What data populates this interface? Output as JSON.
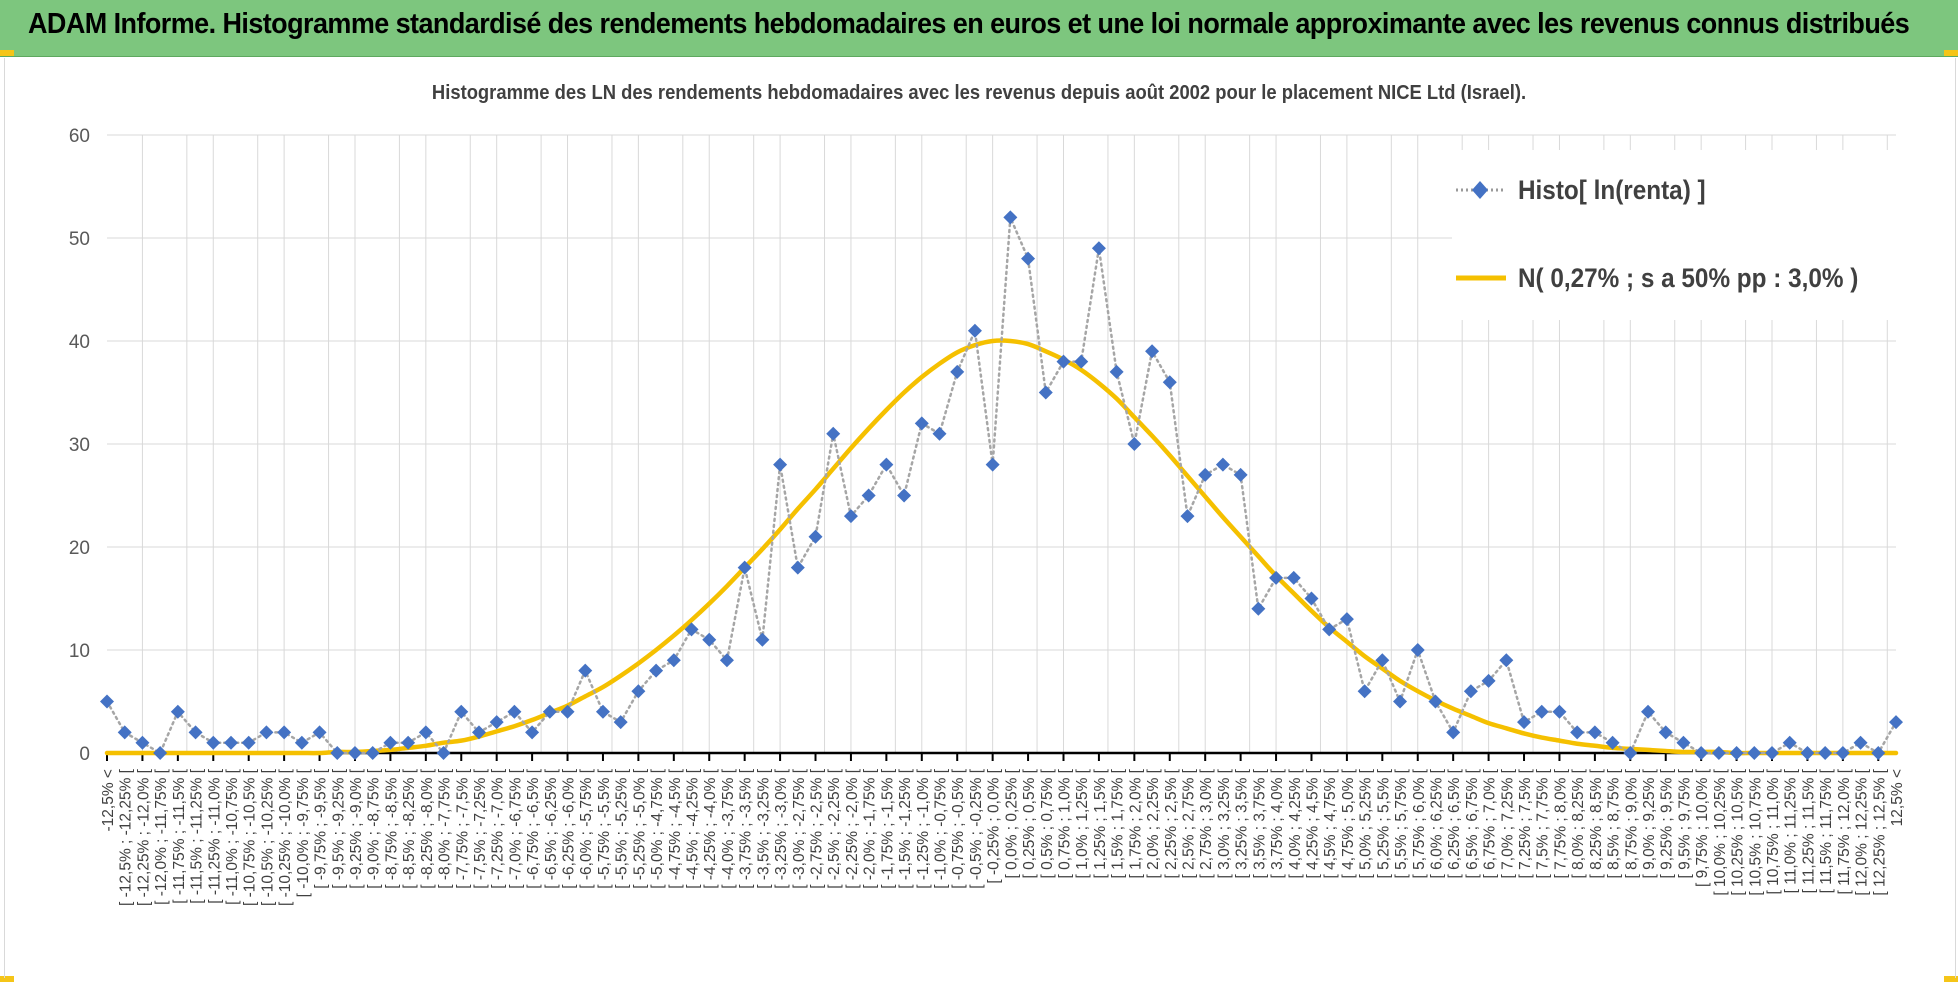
{
  "banner": {
    "title": "ADAM Informe. Histogramme standardisé des rendements hebdomadaires en euros et une loi normale approximante avec les revenus connus distribués"
  },
  "colors": {
    "banner": "#7dc67e",
    "histogram": "#4472c4",
    "normal_curve": "#f5c000",
    "grid": "#d9d9d9",
    "axis": "#000000",
    "corner_accent": "#f5c518"
  },
  "chart_data": {
    "type": "line",
    "title": "Histogramme des LN des rendements hebdomadaires avec les revenus depuis août 2002 pour le placement NICE Ltd (Israel).",
    "ylim": [
      0,
      60
    ],
    "yticks": [
      0,
      10,
      20,
      30,
      40,
      50,
      60
    ],
    "grid": true,
    "legend_position": "top-right",
    "categories": [
      "-12,5% <",
      "[ -12,5% ; -12,25% [",
      "[ -12,25% ; -12,0% [",
      "[ -12,0% ; -11,75% [",
      "[ -11,75% ; -11,5% [",
      "[ -11,5% ; -11,25% [",
      "[ -11,25% ; -11,0% [",
      "[ -11,0% ; -10,75% [",
      "[ -10,75% ; -10,5% [",
      "[ -10,5% ; -10,25% [",
      "[ -10,25% ; -10,0% [",
      "[ -10,0% ; -9,75% [",
      "[ -9,75% ; -9,5% [",
      "[ -9,5% ; -9,25% [",
      "[ -9,25% ; -9,0% [",
      "[ -9,0% ; -8,75% [",
      "[ -8,75% ; -8,5% [",
      "[ -8,5% ; -8,25% [",
      "[ -8,25% ; -8,0% [",
      "[ -8,0% ; -7,75% [",
      "[ -7,75% ; -7,5% [",
      "[ -7,5% ; -7,25% [",
      "[ -7,25% ; -7,0% [",
      "[ -7,0% ; -6,75% [",
      "[ -6,75% ; -6,5% [",
      "[ -6,5% ; -6,25% [",
      "[ -6,25% ; -6,0% [",
      "[ -6,0% ; -5,75% [",
      "[ -5,75% ; -5,5% [",
      "[ -5,5% ; -5,25% [",
      "[ -5,25% ; -5,0% [",
      "[ -5,0% ; -4,75% [",
      "[ -4,75% ; -4,5% [",
      "[ -4,5% ; -4,25% [",
      "[ -4,25% ; -4,0% [",
      "[ -4,0% ; -3,75% [",
      "[ -3,75% ; -3,5% [",
      "[ -3,5% ; -3,25% [",
      "[ -3,25% ; -3,0% [",
      "[ -3,0% ; -2,75% [",
      "[ -2,75% ; -2,5% [",
      "[ -2,5% ; -2,25% [",
      "[ -2,25% ; -2,0% [",
      "[ -2,0% ; -1,75% [",
      "[ -1,75% ; -1,5% [",
      "[ -1,5% ; -1,25% [",
      "[ -1,25% ; -1,0% [",
      "[ -1,0% ; -0,75% [",
      "[ -0,75% ; -0,5% [",
      "[ -0,5% ; -0,25% [",
      "[ -0,25% ; 0,0% [",
      "[ 0,0% ; 0,25% [",
      "[ 0,25% ; 0,5% [",
      "[ 0,5% ; 0,75% [",
      "[ 0,75% ; 1,0% [",
      "[ 1,0% ; 1,25% [",
      "[ 1,25% ; 1,5% [",
      "[ 1,5% ; 1,75% [",
      "[ 1,75% ; 2,0% [",
      "[ 2,0% ; 2,25% [",
      "[ 2,25% ; 2,5% [",
      "[ 2,5% ; 2,75% [",
      "[ 2,75% ; 3,0% [",
      "[ 3,0% ; 3,25% [",
      "[ 3,25% ; 3,5% [",
      "[ 3,5% ; 3,75% [",
      "[ 3,75% ; 4,0% [",
      "[ 4,0% ; 4,25% [",
      "[ 4,25% ; 4,5% [",
      "[ 4,5% ; 4,75% [",
      "[ 4,75% ; 5,0% [",
      "[ 5,0% ; 5,25% [",
      "[ 5,25% ; 5,5% [",
      "[ 5,5% ; 5,75% [",
      "[ 5,75% ; 6,0% [",
      "[ 6,0% ; 6,25% [",
      "[ 6,25% ; 6,5% [",
      "[ 6,5% ; 6,75% [",
      "[ 6,75% ; 7,0% [",
      "[ 7,0% ; 7,25% [",
      "[ 7,25% ; 7,5% [",
      "[ 7,5% ; 7,75% [",
      "[ 7,75% ; 8,0% [",
      "[ 8,0% ; 8,25% [",
      "[ 8,25% ; 8,5% [",
      "[ 8,5% ; 8,75% [",
      "[ 8,75% ; 9,0% [",
      "[ 9,0% ; 9,25% [",
      "[ 9,25% ; 9,5% [",
      "[ 9,5% ; 9,75% [",
      "[ 9,75% ; 10,0% [",
      "[ 10,0% ; 10,25% [",
      "[ 10,25% ; 10,5% [",
      "[ 10,5% ; 10,75% [",
      "[ 10,75% ; 11,0% [",
      "[ 11,0% ; 11,25% [",
      "[ 11,25% ; 11,5% [",
      "[ 11,5% ; 11,75% [",
      "[ 11,75% ; 12,0% [",
      "[ 12,0% ; 12,25% [",
      "[ 12,25% ; 12,5% [",
      "12,5% <"
    ],
    "series": [
      {
        "name": "Histo[ ln(renta) ]",
        "style": "dotted-line-diamond-markers",
        "values": [
          5,
          2,
          1,
          0,
          4,
          2,
          1,
          1,
          1,
          2,
          2,
          1,
          2,
          0,
          0,
          0,
          1,
          1,
          2,
          0,
          4,
          2,
          3,
          4,
          2,
          4,
          4,
          8,
          4,
          3,
          6,
          8,
          9,
          12,
          11,
          9,
          18,
          11,
          28,
          18,
          21,
          31,
          23,
          25,
          28,
          25,
          32,
          31,
          37,
          41,
          28,
          52,
          48,
          35,
          38,
          38,
          49,
          37,
          30,
          39,
          36,
          23,
          27,
          28,
          27,
          14,
          17,
          17,
          15,
          12,
          13,
          6,
          9,
          5,
          10,
          5,
          2,
          6,
          7,
          9,
          3,
          4,
          4,
          2,
          2,
          1,
          0,
          4,
          2,
          1,
          0,
          0,
          0,
          0,
          0,
          1,
          0,
          0,
          0,
          1,
          0,
          3
        ]
      },
      {
        "name": "N( 0,27% ; s a 50% pp : 3,0% )",
        "style": "smooth-line",
        "values": [
          0.0,
          0.0,
          0.0,
          0.0,
          0.0,
          0.0,
          0.0,
          0.0,
          0.0,
          0.0,
          0.0,
          0.0,
          0.0,
          0.1,
          0.1,
          0.2,
          0.3,
          0.5,
          0.7,
          1.0,
          1.2,
          1.6,
          2.1,
          2.6,
          3.2,
          3.9,
          4.6,
          5.5,
          6.4,
          7.5,
          8.7,
          10.0,
          11.4,
          12.9,
          14.5,
          16.2,
          18.0,
          19.8,
          21.7,
          23.7,
          25.6,
          27.6,
          29.6,
          31.5,
          33.3,
          35.0,
          36.5,
          37.8,
          38.9,
          39.6,
          40.0,
          40.0,
          39.7,
          39.0,
          38.2,
          37.2,
          35.9,
          34.4,
          32.6,
          30.8,
          28.9,
          26.9,
          24.9,
          22.9,
          21.0,
          19.1,
          17.2,
          15.5,
          13.8,
          12.2,
          10.8,
          9.4,
          8.2,
          7.0,
          6.0,
          5.1,
          4.3,
          3.6,
          2.9,
          2.4,
          1.9,
          1.5,
          1.2,
          0.9,
          0.7,
          0.5,
          0.4,
          0.3,
          0.2,
          0.1,
          0.1,
          0.1,
          0.0,
          0.0,
          0.0,
          0.0,
          0.0,
          0.0,
          0.0,
          0.0,
          0.0,
          0.0
        ]
      }
    ]
  }
}
